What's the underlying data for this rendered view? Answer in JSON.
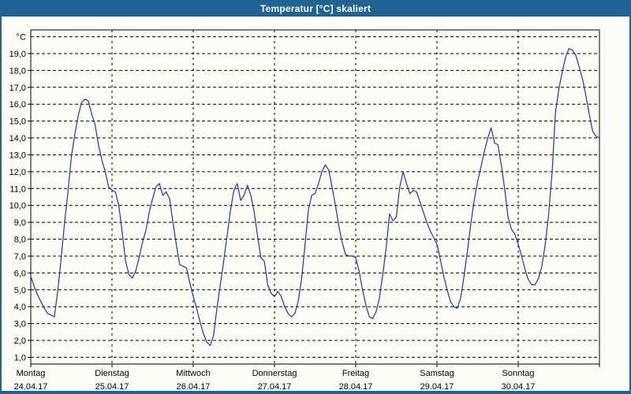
{
  "window": {
    "title": "Temperatur [°C] skaliert"
  },
  "colors": {
    "titlebar_bg": "#1F6492",
    "titlebar_text": "#FFFFFF",
    "window_border": "#1F6492",
    "canvas_bg": "#FCFDF5",
    "grid": "#000000",
    "frame": "#000000",
    "series_line": "#2433AD",
    "label_text": "#000000"
  },
  "chart_data": {
    "type": "line",
    "title": "Temperatur [°C] skaliert",
    "y_unit_label": "°C",
    "y_tick_values": [
      1,
      2,
      3,
      4,
      5,
      6,
      7,
      8,
      9,
      10,
      11,
      12,
      13,
      14,
      15,
      16,
      17,
      18,
      19
    ],
    "y_tick_labels": [
      "1,0",
      "2,0",
      "3,0",
      "4,0",
      "5,0",
      "6,0",
      "7,0",
      "8,0",
      "9,0",
      "10,0",
      "11,0",
      "12,0",
      "13,0",
      "14,0",
      "15,0",
      "16,0",
      "17,0",
      "18,0",
      "19,0"
    ],
    "y_unit_gridline_value": 20,
    "ylim": [
      0.6,
      20.4
    ],
    "grid": "dashed",
    "legend": "none",
    "x_days": [
      {
        "name": "Montag",
        "date": "24.04.17"
      },
      {
        "name": "Dienstag",
        "date": "25.04.17"
      },
      {
        "name": "Mittwoch",
        "date": "26.04.17"
      },
      {
        "name": "Donnerstag",
        "date": "27.04.17"
      },
      {
        "name": "Freitag",
        "date": "28.04.17"
      },
      {
        "name": "Samstag",
        "date": "29.04.17"
      },
      {
        "name": "Sonntag",
        "date": "30.04.17"
      }
    ],
    "x_step_hours": 1,
    "series": [
      {
        "name": "Temperatur",
        "unit": "°C",
        "values": [
          5.8,
          5.2,
          4.7,
          4.3,
          3.9,
          3.6,
          3.5,
          3.4,
          5.0,
          6.9,
          9.0,
          10.8,
          12.9,
          14.2,
          15.3,
          16.1,
          16.3,
          16.2,
          15.4,
          14.8,
          13.6,
          12.7,
          12.0,
          11.1,
          10.9,
          10.8,
          10.0,
          8.4,
          6.7,
          5.9,
          5.7,
          6.1,
          6.9,
          7.8,
          8.5,
          9.6,
          10.4,
          11.1,
          11.3,
          10.6,
          10.8,
          10.4,
          9.0,
          7.7,
          6.5,
          6.4,
          6.3,
          5.4,
          4.6,
          3.9,
          3.1,
          2.4,
          1.9,
          1.7,
          2.3,
          3.9,
          5.3,
          6.7,
          8.2,
          9.7,
          10.9,
          11.3,
          10.3,
          10.6,
          11.2,
          10.6,
          9.6,
          8.2,
          6.9,
          6.7,
          5.3,
          4.8,
          4.6,
          4.9,
          4.6,
          4.0,
          3.6,
          3.4,
          3.6,
          4.3,
          5.6,
          7.6,
          9.7,
          10.6,
          10.7,
          11.3,
          12.0,
          12.4,
          12.1,
          11.1,
          10.0,
          8.8,
          7.8,
          7.1,
          7.0,
          7.0,
          6.9,
          6.1,
          5.0,
          4.1,
          3.4,
          3.3,
          3.7,
          4.5,
          5.9,
          7.5,
          9.5,
          9.1,
          9.3,
          11.1,
          12.0,
          11.3,
          10.7,
          10.9,
          10.8,
          10.2,
          9.6,
          9.0,
          8.5,
          8.1,
          7.7,
          6.8,
          5.8,
          5.0,
          4.3,
          4.0,
          3.9,
          4.5,
          5.8,
          7.3,
          8.9,
          10.3,
          11.4,
          12.3,
          13.2,
          14.0,
          14.6,
          13.7,
          13.6,
          12.4,
          11.0,
          9.3,
          8.6,
          8.3,
          7.7,
          7.0,
          6.2,
          5.6,
          5.3,
          5.3,
          5.7,
          6.4,
          7.7,
          9.5,
          11.9,
          15.5,
          16.9,
          17.9,
          18.8,
          19.3,
          19.2,
          18.9,
          18.2,
          17.5,
          16.5,
          15.4,
          14.4,
          14.1,
          14.0
        ]
      }
    ]
  }
}
